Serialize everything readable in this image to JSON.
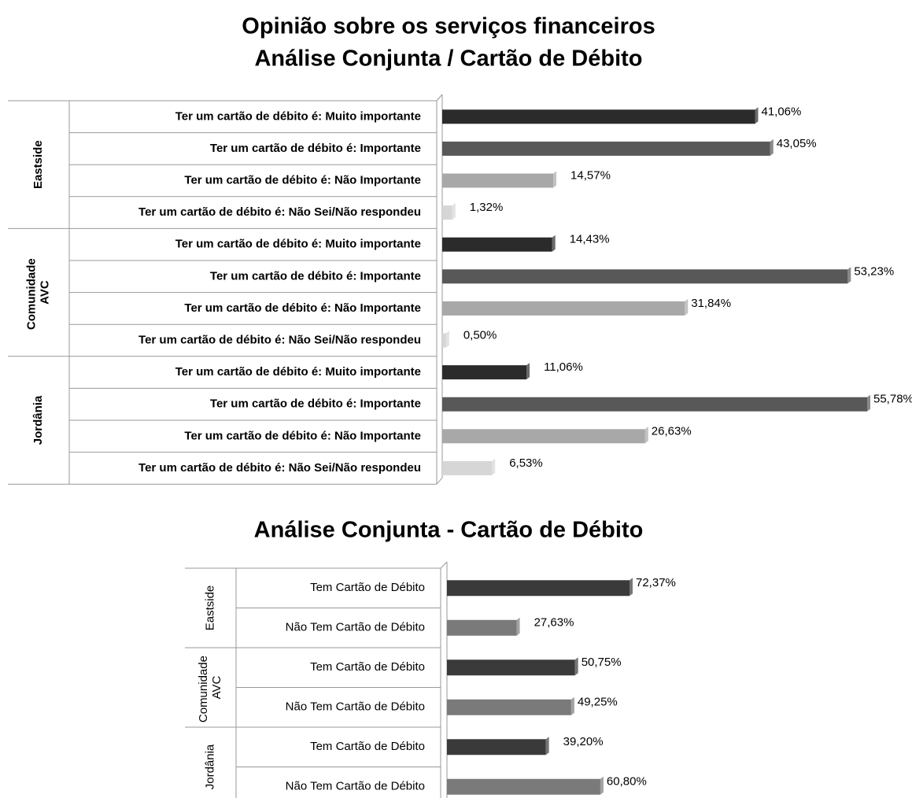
{
  "chart_data": [
    {
      "type": "bar",
      "orientation": "horizontal",
      "title": "Opinião sobre os serviços financeiros",
      "subtitle": "Análise Conjunta / Cartão de Débito",
      "groups": [
        {
          "name": "Eastside",
          "categories": [
            "Ter um cartão de débito é: Muito importante",
            "Ter um cartão de débito é: Importante",
            "Ter um cartão de débito é: Não Importante",
            "Ter um cartão de débito é: Não Sei/Não respondeu"
          ]
        },
        {
          "name": "Comunidade AVC",
          "categories": [
            "Ter um cartão de débito é: Muito importante",
            "Ter um cartão de débito é: Importante",
            "Ter um cartão de débito é: Não Importante",
            "Ter um cartão de débito é: Não Sei/Não respondeu"
          ]
        },
        {
          "name": "Jordânia",
          "categories": [
            "Ter um cartão de débito é: Muito importante",
            "Ter um cartão de débito é: Importante",
            "Ter um cartão de débito é: Não Importante",
            "Ter um cartão de débito é: Não Sei/Não respondeu"
          ]
        }
      ],
      "values": [
        41.06,
        43.05,
        14.57,
        1.32,
        14.43,
        53.23,
        31.84,
        0.5,
        11.06,
        55.78,
        26.63,
        6.53
      ],
      "value_labels": [
        "41,06%",
        "43,05%",
        "14,57%",
        "1,32%",
        "14,43%",
        "53,23%",
        "31,84%",
        "0,50%",
        "11,06%",
        "55,78%",
        "26,63%",
        "6,53%"
      ],
      "colors": [
        "#2b2b2b",
        "#585858",
        "#a8a8a8",
        "#d6d6d6",
        "#2b2b2b",
        "#585858",
        "#a8a8a8",
        "#d6d6d6",
        "#2b2b2b",
        "#585858",
        "#a8a8a8",
        "#d6d6d6"
      ]
    },
    {
      "type": "bar",
      "orientation": "horizontal",
      "title": "Análise Conjunta - Cartão de Débito",
      "groups": [
        {
          "name": "Eastside",
          "categories": [
            "Tem Cartão de Débito",
            "Não Tem Cartão de Débito"
          ]
        },
        {
          "name": "Comunidade AVC",
          "categories": [
            "Tem Cartão de Débito",
            "Não Tem Cartão de Débito"
          ]
        },
        {
          "name": "Jordânia",
          "categories": [
            "Tem Cartão de Débito",
            "Não Tem Cartão de Débito"
          ]
        }
      ],
      "values": [
        72.37,
        27.63,
        50.75,
        49.25,
        39.2,
        60.8
      ],
      "value_labels": [
        "72,37%",
        "27,63%",
        "50,75%",
        "49,25%",
        "39,20%",
        "60,80%"
      ],
      "colors": [
        "#3a3a3a",
        "#7a7a7a",
        "#3a3a3a",
        "#7a7a7a",
        "#3a3a3a",
        "#7a7a7a"
      ]
    }
  ]
}
